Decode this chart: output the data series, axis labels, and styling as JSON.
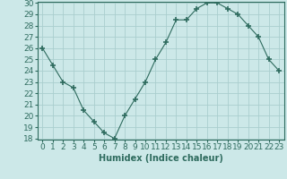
{
  "x": [
    0,
    1,
    2,
    3,
    4,
    5,
    6,
    7,
    8,
    9,
    10,
    11,
    12,
    13,
    14,
    15,
    16,
    17,
    18,
    19,
    20,
    21,
    22,
    23
  ],
  "y": [
    26,
    24.5,
    23,
    22.5,
    20.5,
    19.5,
    18.5,
    18,
    20,
    21.5,
    23,
    25,
    26.5,
    28.5,
    28.5,
    29.5,
    30,
    30,
    29.5,
    29,
    28,
    27,
    25,
    24
  ],
  "line_color": "#2e6b5e",
  "marker": "+",
  "marker_size": 4,
  "bg_color": "#cce8e8",
  "grid_color": "#aacece",
  "xlabel": "Humidex (Indice chaleur)",
  "xlim": [
    -0.5,
    23.5
  ],
  "ylim": [
    18,
    30
  ],
  "yticks": [
    18,
    19,
    20,
    21,
    22,
    23,
    24,
    25,
    26,
    27,
    28,
    29,
    30
  ],
  "xtick_labels": [
    "0",
    "1",
    "2",
    "3",
    "4",
    "5",
    "6",
    "7",
    "8",
    "9",
    "10",
    "11",
    "12",
    "13",
    "14",
    "15",
    "16",
    "17",
    "18",
    "19",
    "20",
    "21",
    "22",
    "23"
  ],
  "label_fontsize": 7,
  "tick_fontsize": 6.5
}
